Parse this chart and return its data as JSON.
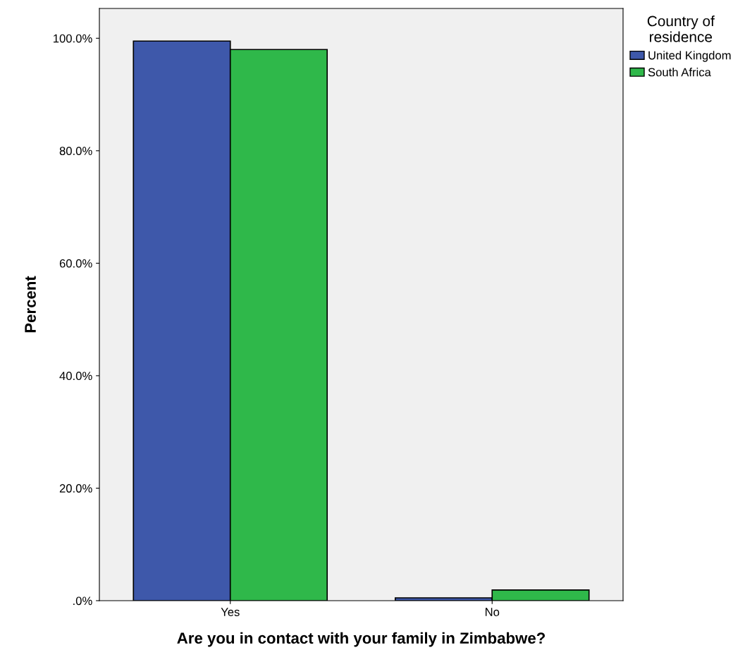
{
  "chart_data": {
    "type": "bar",
    "xlabel": "Are you in contact with your family in Zimbabwe?",
    "ylabel": "Percent",
    "legend_title": "Country of\nresidence",
    "categories": [
      "Yes",
      "No"
    ],
    "series": [
      {
        "name": "United Kingdom",
        "color": "#3e58aa",
        "values": [
          99.5,
          0.5
        ]
      },
      {
        "name": "South Africa",
        "color": "#2fb84a",
        "values": [
          98.0,
          1.9
        ]
      }
    ],
    "ylim": [
      0,
      105.3
    ],
    "yticks": [
      {
        "value": 0,
        "label": ".0%"
      },
      {
        "value": 20,
        "label": "20.0%"
      },
      {
        "value": 40,
        "label": "40.0%"
      },
      {
        "value": 60,
        "label": "60.0%"
      },
      {
        "value": 80,
        "label": "80.0%"
      },
      {
        "value": 100,
        "label": "100.0%"
      }
    ],
    "legend": "top right",
    "grid": false
  }
}
